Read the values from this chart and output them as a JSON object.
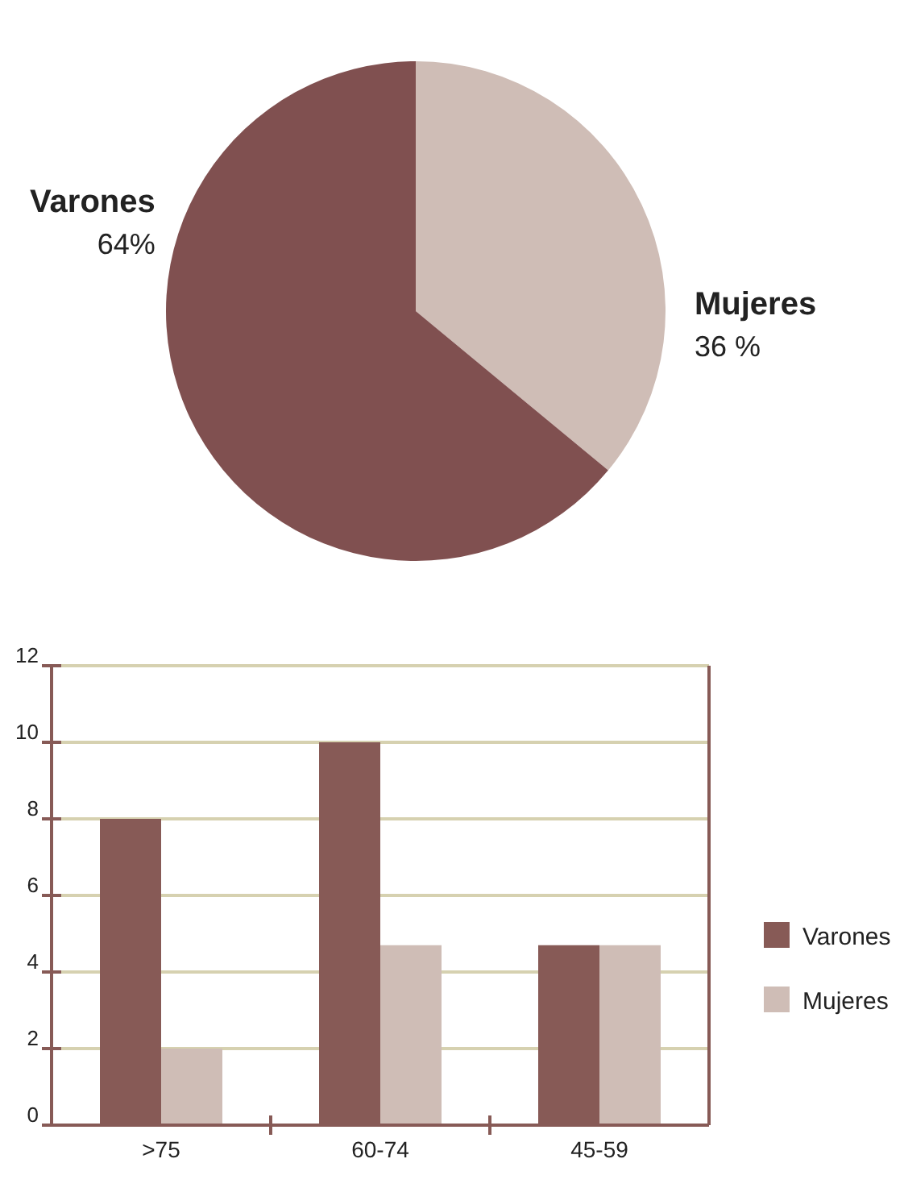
{
  "chart_data": [
    {
      "type": "pie",
      "categories": [
        "Mujeres",
        "Varones"
      ],
      "values": [
        36,
        64
      ],
      "colors": [
        "#cfbdb6",
        "#805050"
      ],
      "value_labels": [
        "36 %",
        "64%"
      ]
    },
    {
      "type": "bar",
      "categories": [
        ">75",
        "60-74",
        "45-59"
      ],
      "series": [
        {
          "name": "Varones",
          "color": "#875a56",
          "values": [
            8,
            10,
            4.7
          ]
        },
        {
          "name": "Mujeres",
          "color": "#cfbdb6",
          "values": [
            2,
            4.7,
            4.7
          ]
        }
      ],
      "ylim": [
        0,
        12
      ],
      "yticks": [
        0,
        2,
        4,
        6,
        8,
        10,
        12
      ],
      "grid": "y",
      "legend": "right"
    }
  ]
}
